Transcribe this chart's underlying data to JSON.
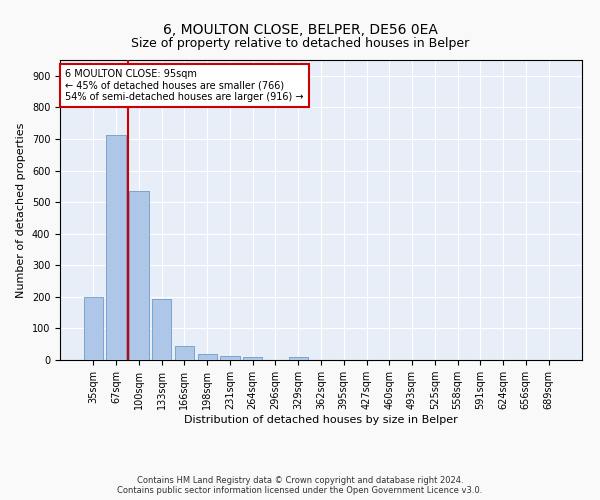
{
  "title1": "6, MOULTON CLOSE, BELPER, DE56 0EA",
  "title2": "Size of property relative to detached houses in Belper",
  "xlabel": "Distribution of detached houses by size in Belper",
  "ylabel": "Number of detached properties",
  "categories": [
    "35sqm",
    "67sqm",
    "100sqm",
    "133sqm",
    "166sqm",
    "198sqm",
    "231sqm",
    "264sqm",
    "296sqm",
    "329sqm",
    "362sqm",
    "395sqm",
    "427sqm",
    "460sqm",
    "493sqm",
    "525sqm",
    "558sqm",
    "591sqm",
    "624sqm",
    "656sqm",
    "689sqm"
  ],
  "values": [
    200,
    713,
    535,
    192,
    44,
    18,
    13,
    9,
    0,
    8,
    0,
    0,
    0,
    0,
    0,
    0,
    0,
    0,
    0,
    0,
    0
  ],
  "bar_color": "#aec6e8",
  "bar_edge_color": "#5a8fc2",
  "bg_color": "#e8eef7",
  "grid_color": "#ffffff",
  "vline_x_index": 1.5,
  "vline_color": "#cc0000",
  "annotation_text": "6 MOULTON CLOSE: 95sqm\n← 45% of detached houses are smaller (766)\n54% of semi-detached houses are larger (916) →",
  "annotation_box_color": "#ffffff",
  "annotation_box_edge": "#cc0000",
  "ylim": [
    0,
    950
  ],
  "yticks": [
    0,
    100,
    200,
    300,
    400,
    500,
    600,
    700,
    800,
    900
  ],
  "footer": "Contains HM Land Registry data © Crown copyright and database right 2024.\nContains public sector information licensed under the Open Government Licence v3.0.",
  "title_fontsize": 10,
  "subtitle_fontsize": 9,
  "label_fontsize": 8,
  "tick_fontsize": 7,
  "annotation_fontsize": 7,
  "footer_fontsize": 6
}
